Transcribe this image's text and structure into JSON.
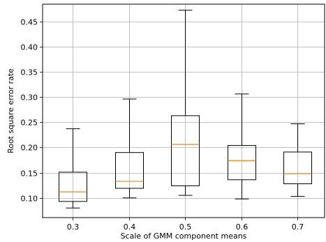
{
  "chart_data": {
    "type": "box",
    "title": "",
    "xlabel": "Scale of GMM component means",
    "ylabel": "Root square error rate",
    "categories": [
      "0.3",
      "0.4",
      "0.5",
      "0.6",
      "0.7"
    ],
    "boxes": [
      {
        "category": "0.3",
        "whisker_low": 0.08,
        "q1": 0.093,
        "median": 0.112,
        "q3": 0.151,
        "whisker_high": 0.237
      },
      {
        "category": "0.4",
        "whisker_low": 0.1,
        "q1": 0.119,
        "median": 0.133,
        "q3": 0.19,
        "whisker_high": 0.296
      },
      {
        "category": "0.5",
        "whisker_low": 0.105,
        "q1": 0.124,
        "median": 0.206,
        "q3": 0.263,
        "whisker_high": 0.472
      },
      {
        "category": "0.6",
        "whisker_low": 0.098,
        "q1": 0.136,
        "median": 0.174,
        "q3": 0.204,
        "whisker_high": 0.306
      },
      {
        "category": "0.7",
        "whisker_low": 0.103,
        "q1": 0.128,
        "median": 0.148,
        "q3": 0.191,
        "whisker_high": 0.247
      }
    ],
    "y_ticks": [
      "0.10",
      "0.15",
      "0.20",
      "0.25",
      "0.30",
      "0.35",
      "0.40",
      "0.45"
    ],
    "y_tick_values": [
      0.1,
      0.15,
      0.2,
      0.25,
      0.3,
      0.35,
      0.4,
      0.45
    ],
    "ylim": [
      0.061,
      0.484
    ],
    "grid": true,
    "colors": {
      "box": "#000000",
      "median": "#ff7f0e",
      "grid": "#b0b0b0"
    }
  }
}
